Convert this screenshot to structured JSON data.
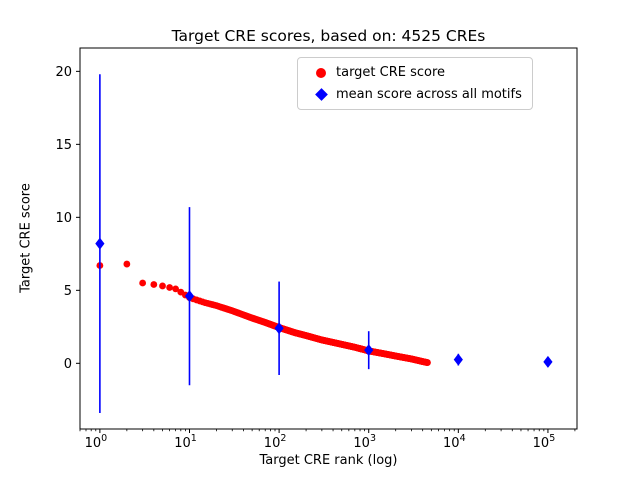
{
  "chart_data": {
    "type": "scatter",
    "title": "Target CRE scores, based on: 4525 CREs",
    "xlabel": "Target CRE rank (log)",
    "ylabel": "Target CRE score",
    "xscale": "log",
    "xlim": [
      0.6,
      211000
    ],
    "ylim": [
      -4.5,
      21.6
    ],
    "x_tick_exponents": [
      0,
      1,
      2,
      3,
      4,
      5
    ],
    "x_tick_base": "10",
    "y_ticks": [
      0,
      5,
      10,
      15,
      20
    ],
    "grid": false,
    "legend": {
      "position": "upper center-right",
      "entries": [
        {
          "label": "target CRE score",
          "marker": "circle",
          "color": "#ff0000"
        },
        {
          "label": "mean score across all motifs",
          "marker": "diamond",
          "color": "#0000ff"
        }
      ]
    },
    "series": [
      {
        "name": "target CRE score",
        "marker": "circle",
        "color": "#ff0000",
        "n_points": 4525,
        "anchors": [
          [
            1,
            6.7
          ],
          [
            2,
            6.8
          ],
          [
            3,
            5.5
          ],
          [
            4,
            5.4
          ],
          [
            5,
            5.3
          ],
          [
            7,
            5.1
          ],
          [
            10,
            4.5
          ],
          [
            15,
            4.15
          ],
          [
            20,
            3.95
          ],
          [
            30,
            3.6
          ],
          [
            50,
            3.1
          ],
          [
            70,
            2.8
          ],
          [
            100,
            2.45
          ],
          [
            150,
            2.1
          ],
          [
            200,
            1.9
          ],
          [
            300,
            1.6
          ],
          [
            500,
            1.3
          ],
          [
            700,
            1.1
          ],
          [
            1000,
            0.85
          ],
          [
            1500,
            0.65
          ],
          [
            2000,
            0.5
          ],
          [
            3000,
            0.3
          ],
          [
            4000,
            0.12
          ],
          [
            4525,
            0.05
          ]
        ]
      },
      {
        "name": "mean score across all motifs",
        "marker": "diamond",
        "color": "#0000ff",
        "x": [
          1,
          10,
          100,
          1000,
          10000,
          100000
        ],
        "y": [
          8.2,
          4.6,
          2.4,
          0.9,
          0.25,
          0.1
        ],
        "yerr": [
          11.6,
          6.1,
          3.2,
          1.3,
          0.4,
          0.15
        ]
      }
    ]
  }
}
